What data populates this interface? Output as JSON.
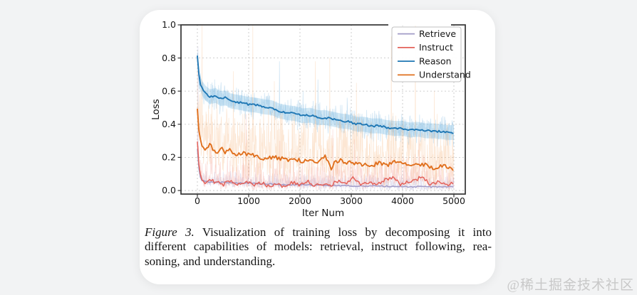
{
  "watermark": {
    "text": "@稀土掘金技术社区",
    "color": "#c8c8c8"
  },
  "caption": {
    "figure_label": "Figure 3.",
    "line1": "Visualization of training loss by decomposing it into",
    "line2": "different capabilities of models: retrieval, instruct following, rea-",
    "line3": "soning, and understanding."
  },
  "chart_data": {
    "type": "line",
    "title": "",
    "xlabel": "Iter Num",
    "ylabel": "Loss",
    "xlim": [
      -290,
      5220
    ],
    "ylim": [
      -0.022,
      1.0
    ],
    "xticks": [
      0,
      1000,
      2000,
      3000,
      4000,
      5000
    ],
    "xtick_labels": [
      "0",
      "1000",
      "2000",
      "3000",
      "4000",
      "5000"
    ],
    "yticks": [
      0,
      0.2,
      0.4,
      0.6,
      0.8,
      1.0
    ],
    "ytick_labels": [
      "0.0",
      "0.2",
      "0.4",
      "0.6",
      "0.8",
      "1.0"
    ],
    "grid": true,
    "grid_color": "#c9c9c9",
    "spine_color": "#333333",
    "legend_position": "upper right",
    "series": [
      {
        "name": "Retrieve",
        "color": "#a19bc7",
        "line_width": 1.5,
        "x": [
          0,
          40,
          90,
          150,
          250,
          400,
          600,
          800,
          1000,
          1250,
          1500,
          1750,
          2000,
          2250,
          2500,
          2750,
          3000,
          3250,
          3500,
          3750,
          4000,
          4250,
          4500,
          4750,
          5000
        ],
        "values": [
          0.25,
          0.09,
          0.062,
          0.055,
          0.052,
          0.05,
          0.048,
          0.046,
          0.044,
          0.04,
          0.038,
          0.035,
          0.033,
          0.032,
          0.03,
          0.03,
          0.028,
          0.027,
          0.026,
          0.025,
          0.024,
          0.023,
          0.022,
          0.022,
          0.021
        ],
        "jitter": 0.004,
        "noise": {
          "seed": 11,
          "step": 6,
          "up": 0.075,
          "pow": 2.2,
          "down": 0.03,
          "dpow": 1.2,
          "color": "#a9a2d0",
          "opacity": 0.32
        },
        "spikes": [
          [
            12,
            0.87
          ]
        ]
      },
      {
        "name": "Instruct",
        "color": "#e4625a",
        "line_width": 1.5,
        "x": [
          0,
          40,
          90,
          150,
          250,
          350,
          500,
          650,
          800,
          950,
          1100,
          1250,
          1400,
          1550,
          1700,
          1850,
          2000,
          2150,
          2300,
          2450,
          2600,
          2750,
          2900,
          3050,
          3200,
          3350,
          3500,
          3650,
          3800,
          3950,
          4100,
          4250,
          4400,
          4550,
          4700,
          4850,
          5000
        ],
        "values": [
          0.3,
          0.12,
          0.07,
          0.045,
          0.075,
          0.05,
          0.035,
          0.06,
          0.04,
          0.055,
          0.03,
          0.05,
          0.025,
          0.045,
          0.02,
          0.05,
          0.03,
          0.055,
          0.025,
          0.045,
          0.03,
          0.06,
          0.035,
          0.08,
          0.03,
          0.05,
          0.04,
          0.06,
          0.085,
          0.04,
          0.05,
          0.065,
          0.08,
          0.035,
          0.05,
          0.03,
          0.045
        ],
        "jitter": 0.012,
        "noise": {
          "seed": 22,
          "step": 6,
          "up": 0.17,
          "pow": 2.6,
          "down": 0.04,
          "dpow": 1.2,
          "color": "#f2958b",
          "opacity": 0.33
        },
        "spikes": [
          [
            260,
            0.34
          ],
          [
            950,
            0.46
          ],
          [
            1610,
            0.3
          ],
          [
            2640,
            0.37
          ],
          [
            3060,
            0.31
          ],
          [
            4320,
            0.34
          ]
        ]
      },
      {
        "name": "Reason",
        "color": "#1f77b4",
        "line_width": 1.9,
        "x": [
          0,
          40,
          90,
          150,
          250,
          350,
          450,
          550,
          650,
          750,
          850,
          1000,
          1150,
          1300,
          1450,
          1600,
          1750,
          1900,
          2050,
          2200,
          2350,
          2500,
          2650,
          2800,
          2950,
          3100,
          3250,
          3400,
          3550,
          3700,
          3850,
          4000,
          4150,
          4300,
          4450,
          4600,
          4750,
          4900,
          5000
        ],
        "values": [
          0.81,
          0.66,
          0.62,
          0.59,
          0.565,
          0.575,
          0.555,
          0.56,
          0.54,
          0.535,
          0.53,
          0.52,
          0.515,
          0.505,
          0.5,
          0.48,
          0.47,
          0.465,
          0.45,
          0.455,
          0.44,
          0.44,
          0.43,
          0.42,
          0.415,
          0.4,
          0.4,
          0.39,
          0.39,
          0.38,
          0.375,
          0.375,
          0.365,
          0.37,
          0.36,
          0.36,
          0.355,
          0.35,
          0.35
        ],
        "jitter": 0.006,
        "band": {
          "width": 0.045,
          "color": "#9ccbe9",
          "opacity": 0.45
        },
        "noise": {
          "seed": 33,
          "step": 6,
          "up": 0.1,
          "pow": 1.8,
          "down": 0.1,
          "dpow": 1.8,
          "color": "#7fb9e0",
          "opacity": 0.4
        },
        "spikes": [
          [
            1600,
            0.78
          ],
          [
            2060,
            0.6
          ],
          [
            2350,
            0.67
          ],
          [
            2920,
            0.56
          ]
        ]
      },
      {
        "name": "Understand",
        "color": "#e0701e",
        "line_width": 1.9,
        "x": [
          0,
          40,
          90,
          150,
          250,
          350,
          450,
          550,
          650,
          750,
          850,
          1000,
          1150,
          1300,
          1450,
          1600,
          1750,
          1900,
          2050,
          2200,
          2350,
          2500,
          2600,
          2700,
          2800,
          2950,
          3100,
          3250,
          3400,
          3550,
          3700,
          3850,
          4000,
          4150,
          4300,
          4450,
          4600,
          4750,
          4900,
          5000
        ],
        "values": [
          0.5,
          0.33,
          0.28,
          0.25,
          0.275,
          0.22,
          0.26,
          0.23,
          0.245,
          0.21,
          0.225,
          0.22,
          0.21,
          0.185,
          0.2,
          0.195,
          0.185,
          0.19,
          0.18,
          0.19,
          0.175,
          0.205,
          0.13,
          0.175,
          0.18,
          0.17,
          0.165,
          0.155,
          0.15,
          0.165,
          0.155,
          0.18,
          0.16,
          0.15,
          0.155,
          0.16,
          0.135,
          0.15,
          0.14,
          0.13
        ],
        "jitter": 0.013,
        "noise": {
          "seed": 44,
          "step": 6,
          "up": 0.33,
          "pow": 1.4,
          "down": 0.165,
          "dpow": 0.9,
          "color": "#f5b279",
          "opacity": 0.33
        },
        "spikes": [
          [
            90,
            1.0
          ],
          [
            700,
            0.72
          ],
          [
            1080,
            1.0
          ],
          [
            1500,
            0.66
          ],
          [
            2300,
            0.78
          ],
          [
            2580,
            0.8
          ],
          [
            3100,
            0.65
          ],
          [
            3780,
            0.93
          ],
          [
            4250,
            1.0
          ],
          [
            4620,
            0.6
          ]
        ]
      }
    ]
  }
}
